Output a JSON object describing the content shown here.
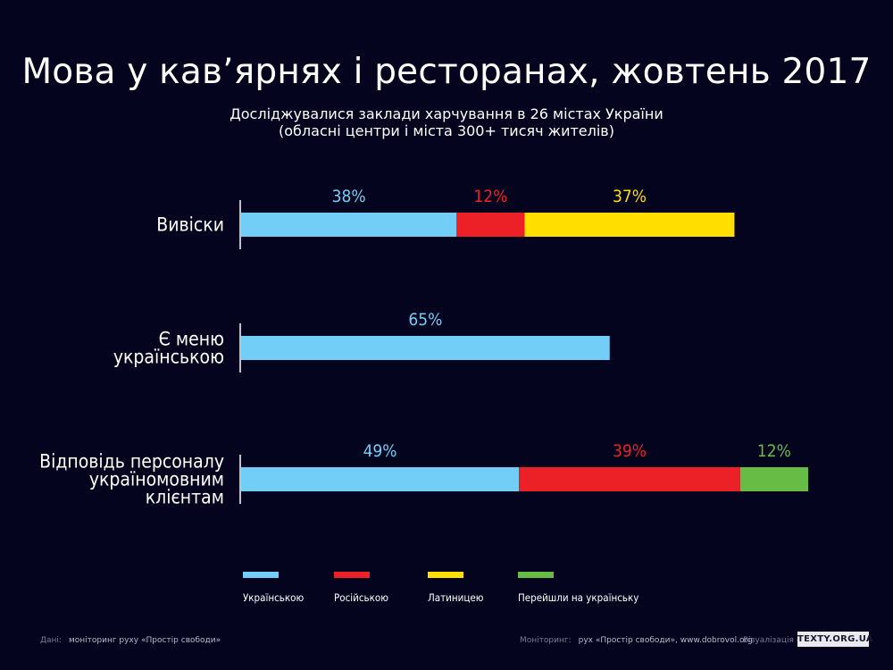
{
  "title": "Мова у кав’ярнях і ресторанах, жовтень 2017",
  "subtitle": {
    "line1": "Досліджувалися заклади харчування в 26 містах України",
    "line2": "(обласні центри і міста 300+ тисяч жителів)"
  },
  "chart_data": {
    "type": "bar",
    "orientation": "horizontal",
    "stacked": true,
    "value_unit": "%",
    "xlim": [
      0,
      100
    ],
    "grid": false,
    "legend_position": "bottom",
    "categories": [
      [
        "Вивіски"
      ],
      [
        "Є  меню",
        "українською"
      ],
      [
        "Відповідь персоналу",
        "україномовним",
        "клієнтам"
      ]
    ],
    "series": [
      {
        "name": "Українською",
        "color": "#72cef7",
        "values": [
          38,
          65,
          49
        ]
      },
      {
        "name": "Російською",
        "color": "#ec2027",
        "values": [
          12,
          null,
          39
        ]
      },
      {
        "name": "Латиницею",
        "color": "#ffde00",
        "values": [
          37,
          null,
          null
        ]
      },
      {
        "name": "Перейшли на українську",
        "color": "#67bc45",
        "values": [
          null,
          null,
          12
        ]
      }
    ],
    "data_labels": [
      [
        "38%",
        "65%",
        "49%"
      ],
      [
        "12%",
        null,
        "39%"
      ],
      [
        "37%",
        null,
        null
      ],
      [
        null,
        null,
        "12%"
      ]
    ]
  },
  "footer": {
    "data_label": "Дані:",
    "data_value": "моніторинг руху «Простір свободи»",
    "monitoring_label": "Моніторинг:",
    "monitoring_value": "рух «Простір свободи», www.dobrovol.org",
    "viz_label": "Візуалізація —",
    "badge": "TEXTY.ORG.UA"
  }
}
